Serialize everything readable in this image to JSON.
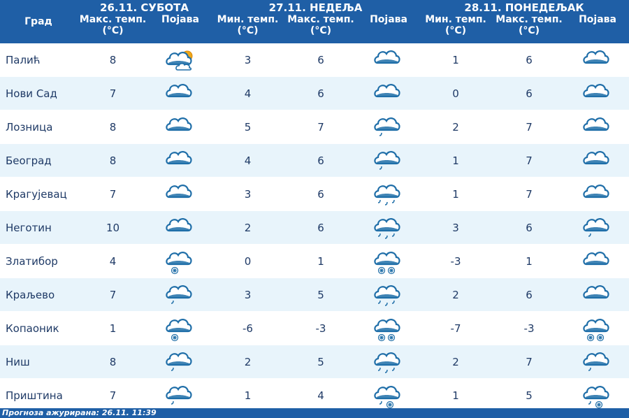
{
  "header": {
    "city_label": "Град",
    "days": [
      {
        "date": "26.11. СУБОТА",
        "cols": [
          "Макс. темп. (°C)",
          "Појава"
        ]
      },
      {
        "date": "27.11. НЕДЕЉА",
        "cols": [
          "Мин. темп. (°C)",
          "Макс. темп. (°C)",
          "Појава"
        ]
      },
      {
        "date": "28.11. ПОНЕДЕЉАК",
        "cols": [
          "Мин. темп. (°C)",
          "Макс. темп. (°C)",
          "Појава"
        ]
      }
    ]
  },
  "rows": [
    {
      "city": "Палић",
      "d1_max": "8",
      "d1_icon": "partly-cloudy-icon",
      "d2_min": "3",
      "d2_max": "6",
      "d2_icon": "cloud-icon",
      "d3_min": "1",
      "d3_max": "6",
      "d3_icon": "cloud-icon"
    },
    {
      "city": "Нови Сад",
      "d1_max": "7",
      "d1_icon": "cloud-icon",
      "d2_min": "4",
      "d2_max": "6",
      "d2_icon": "cloud-icon",
      "d3_min": "0",
      "d3_max": "6",
      "d3_icon": "cloud-icon"
    },
    {
      "city": "Лозница",
      "d1_max": "8",
      "d1_icon": "cloud-icon",
      "d2_min": "5",
      "d2_max": "7",
      "d2_icon": "light-rain-icon",
      "d3_min": "2",
      "d3_max": "7",
      "d3_icon": "cloud-icon"
    },
    {
      "city": "Београд",
      "d1_max": "8",
      "d1_icon": "cloud-icon",
      "d2_min": "4",
      "d2_max": "6",
      "d2_icon": "light-rain-icon",
      "d3_min": "1",
      "d3_max": "7",
      "d3_icon": "cloud-icon"
    },
    {
      "city": "Крагујевац",
      "d1_max": "7",
      "d1_icon": "cloud-icon",
      "d2_min": "3",
      "d2_max": "6",
      "d2_icon": "rain-icon",
      "d3_min": "1",
      "d3_max": "7",
      "d3_icon": "cloud-icon"
    },
    {
      "city": "Неготин",
      "d1_max": "10",
      "d1_icon": "cloud-icon",
      "d2_min": "2",
      "d2_max": "6",
      "d2_icon": "rain-icon",
      "d3_min": "3",
      "d3_max": "6",
      "d3_icon": "light-rain-icon"
    },
    {
      "city": "Златибор",
      "d1_max": "4",
      "d1_icon": "light-snow-icon",
      "d2_min": "0",
      "d2_max": "1",
      "d2_icon": "snow-icon",
      "d3_min": "-3",
      "d3_max": "1",
      "d3_icon": "cloud-icon"
    },
    {
      "city": "Краљево",
      "d1_max": "7",
      "d1_icon": "light-rain-icon",
      "d2_min": "3",
      "d2_max": "5",
      "d2_icon": "rain-icon",
      "d3_min": "2",
      "d3_max": "6",
      "d3_icon": "cloud-icon"
    },
    {
      "city": "Копаоник",
      "d1_max": "1",
      "d1_icon": "light-snow-icon",
      "d2_min": "-6",
      "d2_max": "-3",
      "d2_icon": "snow-icon",
      "d3_min": "-7",
      "d3_max": "-3",
      "d3_icon": "snow-icon"
    },
    {
      "city": "Ниш",
      "d1_max": "8",
      "d1_icon": "light-rain-icon",
      "d2_min": "2",
      "d2_max": "5",
      "d2_icon": "rain-icon",
      "d3_min": "2",
      "d3_max": "7",
      "d3_icon": "light-rain-icon"
    },
    {
      "city": "Приштина",
      "d1_max": "7",
      "d1_icon": "light-rain-icon",
      "d2_min": "1",
      "d2_max": "4",
      "d2_icon": "sleet-icon",
      "d3_min": "1",
      "d3_max": "5",
      "d3_icon": "sleet-icon"
    }
  ],
  "footer": "Прогноза ажурирана:  26.11. 11:39",
  "colors": {
    "header_bg": "#1f5fa6",
    "row_alt": "#e8f4fb",
    "text": "#1f3a66",
    "cloud": "#1f6ea8"
  }
}
